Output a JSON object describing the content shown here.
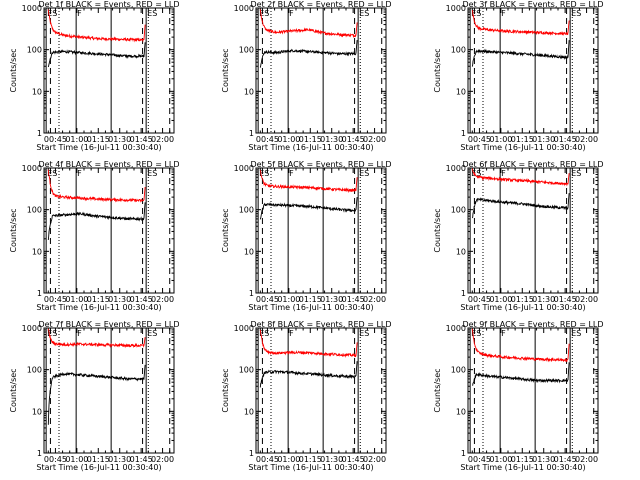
{
  "chart_data": [
    {
      "type": "line",
      "title": "Det 1f BLACK = Events, RED = LLD",
      "xlabel": "Start Time (16-Jul-11 00:30:40)",
      "ylabel": "Counts/sec",
      "x_ticks": [
        "00:45",
        "01:00",
        "01:15",
        "01:30",
        "01:45",
        "02:00"
      ],
      "ylim": [
        1,
        1000
      ],
      "yscale": "log",
      "y_ticks": [
        "1",
        "10",
        "100",
        "1000"
      ],
      "markers": [
        "ES",
        "F",
        "ES"
      ],
      "series": [
        {
          "color": "#ff0000",
          "levels": [
            280,
            220,
            200,
            185,
            180,
            175,
            170
          ],
          "spike_start": 900,
          "spike_end": 400
        },
        {
          "color": "#000000",
          "levels": [
            85,
            90,
            85,
            80,
            75,
            70,
            70
          ],
          "spike_start": 40,
          "spike_end": 150
        }
      ]
    },
    {
      "type": "line",
      "title": "Det 2f BLACK = Events, RED = LLD",
      "xlabel": "Start Time (16-Jul-11 00:30:40)",
      "ylabel": "Counts/sec",
      "x_ticks": [
        "00:45",
        "01:00",
        "01:15",
        "01:30",
        "01:45",
        "02:00"
      ],
      "ylim": [
        1,
        1000
      ],
      "yscale": "log",
      "y_ticks": [
        "1",
        "10",
        "100",
        "1000"
      ],
      "markers": [
        "ES",
        "F",
        "ES"
      ],
      "series": [
        {
          "color": "#ff0000",
          "levels": [
            300,
            260,
            280,
            300,
            250,
            230,
            220
          ],
          "spike_start": 900,
          "spike_end": 450
        },
        {
          "color": "#000000",
          "levels": [
            90,
            85,
            95,
            90,
            85,
            80,
            80
          ],
          "spike_start": 40,
          "spike_end": 170
        }
      ]
    },
    {
      "type": "line",
      "title": "Det 3f BLACK = Events, RED = LLD",
      "xlabel": "Start Time (16-Jul-11 00:30:40)",
      "ylabel": "Counts/sec",
      "x_ticks": [
        "00:45",
        "01:00",
        "01:15",
        "01:30",
        "01:45",
        "02:00"
      ],
      "ylim": [
        1,
        1000
      ],
      "yscale": "log",
      "y_ticks": [
        "1",
        "10",
        "100",
        "1000"
      ],
      "markers": [
        "ES",
        "F",
        "ES"
      ],
      "series": [
        {
          "color": "#ff0000",
          "levels": [
            330,
            300,
            280,
            270,
            260,
            250,
            240
          ],
          "spike_start": 900,
          "spike_end": 500
        },
        {
          "color": "#000000",
          "levels": [
            95,
            90,
            85,
            80,
            75,
            70,
            65
          ],
          "spike_start": 40,
          "spike_end": 170
        }
      ]
    },
    {
      "type": "line",
      "title": "Det 4f BLACK = Events, RED = LLD",
      "xlabel": "Start Time (16-Jul-11 00:30:40)",
      "ylabel": "Counts/sec",
      "x_ticks": [
        "00:45",
        "01:00",
        "01:15",
        "01:30",
        "01:45",
        "02:00"
      ],
      "ylim": [
        1,
        1000
      ],
      "yscale": "log",
      "y_ticks": [
        "1",
        "10",
        "100",
        "1000"
      ],
      "markers": [
        "ES",
        "F",
        "ES"
      ],
      "series": [
        {
          "color": "#ff0000",
          "levels": [
            210,
            200,
            190,
            180,
            175,
            170,
            165
          ],
          "spike_start": 900,
          "spike_end": 350
        },
        {
          "color": "#000000",
          "levels": [
            70,
            75,
            80,
            70,
            65,
            60,
            60
          ],
          "spike_start": 20,
          "spike_end": 150
        }
      ]
    },
    {
      "type": "line",
      "title": "Det 5f BLACK = Events, RED = LLD",
      "xlabel": "Start Time (16-Jul-11 00:30:40)",
      "ylabel": "Counts/sec",
      "x_ticks": [
        "00:45",
        "01:00",
        "01:15",
        "01:30",
        "01:45",
        "02:00"
      ],
      "ylim": [
        1,
        1000
      ],
      "yscale": "log",
      "y_ticks": [
        "1",
        "10",
        "100",
        "1000"
      ],
      "markers": [
        "ES",
        "F",
        "ES"
      ],
      "series": [
        {
          "color": "#ff0000",
          "levels": [
            380,
            360,
            350,
            340,
            320,
            300,
            290
          ],
          "spike_start": 900,
          "spike_end": 600
        },
        {
          "color": "#000000",
          "levels": [
            135,
            130,
            125,
            120,
            110,
            100,
            95
          ],
          "spike_start": 60,
          "spike_end": 200
        }
      ]
    },
    {
      "type": "line",
      "title": "Det 6f BLACK = Events, RED = LLD",
      "xlabel": "Start Time (16-Jul-11 00:30:40)",
      "ylabel": "Counts/sec",
      "x_ticks": [
        "00:45",
        "01:00",
        "01:15",
        "01:30",
        "01:45",
        "02:00"
      ],
      "ylim": [
        1,
        1000
      ],
      "yscale": "log",
      "y_ticks": [
        "1",
        "10",
        "100",
        "1000"
      ],
      "markers": [
        "ES",
        "F",
        "ES"
      ],
      "series": [
        {
          "color": "#ff0000",
          "levels": [
            620,
            570,
            530,
            500,
            470,
            440,
            420
          ],
          "spike_start": 950,
          "spike_end": 750
        },
        {
          "color": "#000000",
          "levels": [
            180,
            165,
            150,
            140,
            125,
            115,
            110
          ],
          "spike_start": 60,
          "spike_end": 250
        }
      ]
    },
    {
      "type": "line",
      "title": "Det 7f BLACK = Events, RED = LLD",
      "xlabel": "Start Time (16-Jul-11 00:30:40)",
      "ylabel": "Counts/sec",
      "x_ticks": [
        "00:45",
        "01:00",
        "01:15",
        "01:30",
        "01:45",
        "02:00"
      ],
      "ylim": [
        1,
        1000
      ],
      "yscale": "log",
      "y_ticks": [
        "1",
        "10",
        "100",
        "1000"
      ],
      "markers": [
        "ES",
        "F",
        "ES"
      ],
      "series": [
        {
          "color": "#ff0000",
          "levels": [
            420,
            400,
            410,
            400,
            390,
            380,
            380
          ],
          "spike_start": 950,
          "spike_end": 600
        },
        {
          "color": "#000000",
          "levels": [
            60,
            80,
            75,
            70,
            65,
            60,
            60
          ],
          "spike_start": 5,
          "spike_end": 130
        }
      ]
    },
    {
      "type": "line",
      "title": "Det 8f BLACK = Events, RED = LLD",
      "xlabel": "Start Time (16-Jul-11 00:30:40)",
      "ylabel": "Counts/sec",
      "x_ticks": [
        "00:45",
        "01:00",
        "01:15",
        "01:30",
        "01:45",
        "02:00"
      ],
      "ylim": [
        1,
        1000
      ],
      "yscale": "log",
      "y_ticks": [
        "1",
        "10",
        "100",
        "1000"
      ],
      "markers": [
        "ES",
        "F",
        "ES"
      ],
      "series": [
        {
          "color": "#ff0000",
          "levels": [
            270,
            250,
            260,
            255,
            240,
            230,
            220
          ],
          "spike_start": 900,
          "spike_end": 450
        },
        {
          "color": "#000000",
          "levels": [
            85,
            90,
            85,
            80,
            75,
            70,
            68
          ],
          "spike_start": 40,
          "spike_end": 160
        }
      ]
    },
    {
      "type": "line",
      "title": "Det 9f BLACK = Events, RED = LLD",
      "xlabel": "Start Time (16-Jul-11 00:30:40)",
      "ylabel": "Counts/sec",
      "x_ticks": [
        "00:45",
        "01:00",
        "01:15",
        "01:30",
        "01:45",
        "02:00"
      ],
      "ylim": [
        1,
        1000
      ],
      "yscale": "log",
      "y_ticks": [
        "1",
        "10",
        "100",
        "1000"
      ],
      "markers": [
        "ES",
        "F",
        "ES"
      ],
      "series": [
        {
          "color": "#ff0000",
          "levels": [
            260,
            220,
            200,
            190,
            180,
            175,
            170
          ],
          "spike_start": 900,
          "spike_end": 420
        },
        {
          "color": "#000000",
          "levels": [
            80,
            70,
            65,
            60,
            55,
            55,
            55
          ],
          "spike_start": 40,
          "spike_end": 150
        }
      ]
    }
  ]
}
